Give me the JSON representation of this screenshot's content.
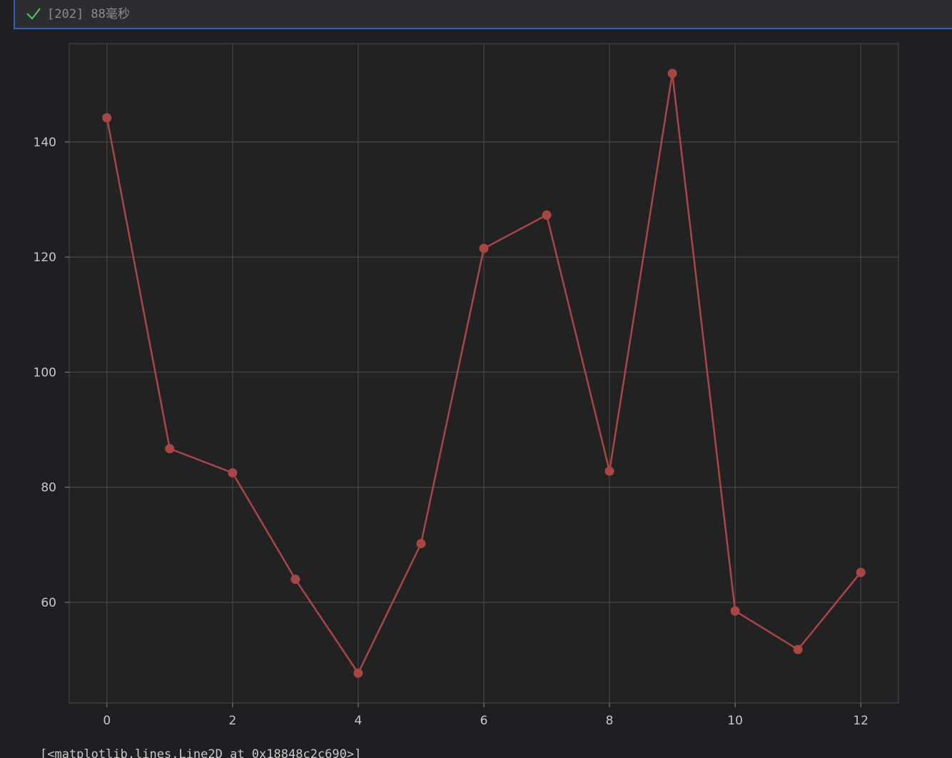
{
  "cell_status": "[202] 88毫秒",
  "chart_data": {
    "type": "line",
    "x": [
      0,
      1,
      2,
      3,
      4,
      5,
      6,
      7,
      8,
      9,
      10,
      11,
      12
    ],
    "series": [
      {
        "color": "#a84646",
        "values": [
          144.2,
          86.7,
          82.5,
          64.0,
          47.7,
          70.2,
          121.5,
          127.3,
          82.8,
          151.9,
          58.5,
          51.8,
          65.2
        ]
      }
    ],
    "xlim": [
      -0.6,
      12.6
    ],
    "xticks": [
      0,
      2,
      4,
      6,
      8,
      10,
      12
    ],
    "ylim": [
      42.5,
      157.1
    ],
    "yticks": [
      60,
      80,
      100,
      120,
      140
    ],
    "grid": true,
    "marker": "o"
  },
  "output_text": "[<matplotlib.lines.Line2D at 0x18848c2c690>]"
}
